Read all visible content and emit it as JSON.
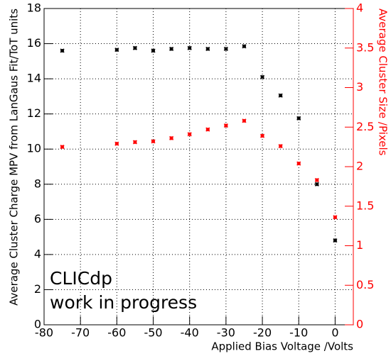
{
  "chart_data": {
    "type": "scatter",
    "xlabel": "Applied Bias Voltage /Volts",
    "ylabel": "Average Cluster Charge MPV from LanGaus Fit/ToT units",
    "y2label": "Average Cluster Size /Pixels",
    "annotations": [
      "CLICdp",
      "work in progress"
    ],
    "x": [
      -75,
      -60,
      -55,
      -50,
      -45,
      -40,
      -35,
      -30,
      -25,
      -20,
      -15,
      -10,
      -5,
      0
    ],
    "series": [
      {
        "name": "Average Cluster Charge MPV",
        "color": "#000000",
        "axis": "y",
        "values": [
          15.6,
          15.65,
          15.75,
          15.6,
          15.7,
          15.75,
          15.7,
          15.7,
          15.85,
          14.1,
          13.05,
          11.75,
          8.0,
          4.8
        ]
      },
      {
        "name": "Average Cluster Size",
        "color": "#ff0000",
        "axis": "y2",
        "values": [
          2.25,
          2.29,
          2.31,
          2.32,
          2.36,
          2.41,
          2.47,
          2.52,
          2.58,
          2.39,
          2.26,
          2.04,
          1.83,
          1.36
        ]
      }
    ],
    "xlim": [
      -80,
      5
    ],
    "xticks": [
      -80,
      -70,
      -60,
      -50,
      -40,
      -30,
      -20,
      -10,
      0
    ],
    "ylim": [
      0,
      18
    ],
    "yticks": [
      0,
      2,
      4,
      6,
      8,
      10,
      12,
      14,
      16,
      18
    ],
    "y2lim": [
      0,
      4
    ],
    "y2ticks": [
      0,
      0.5,
      1,
      1.5,
      2,
      2.5,
      3,
      3.5,
      4
    ],
    "grid": true
  }
}
